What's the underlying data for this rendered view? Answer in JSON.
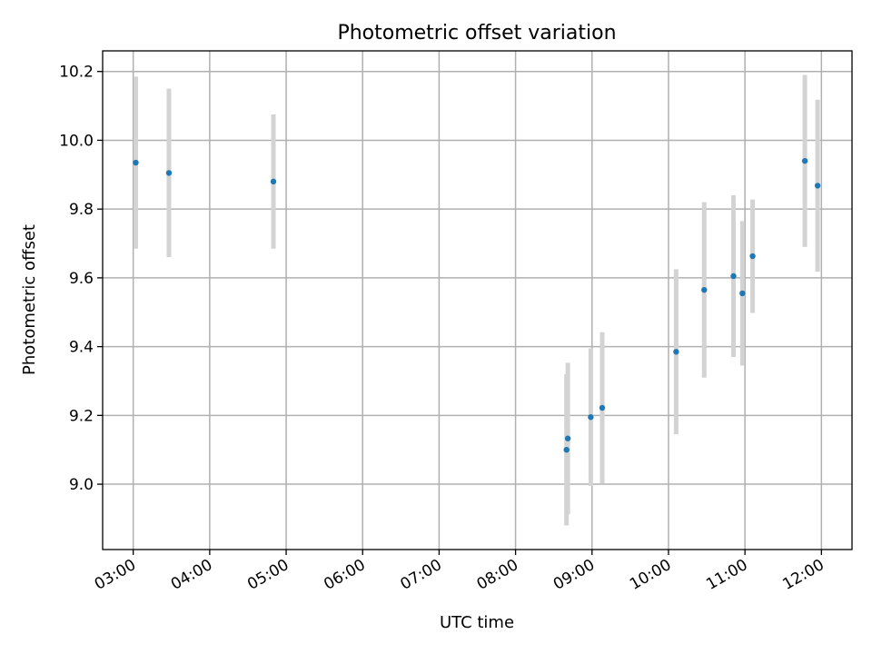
{
  "chart_data": {
    "type": "scatter",
    "title": "Photometric offset variation",
    "xlabel": "UTC time",
    "ylabel": "Photometric offset",
    "xlim": [
      "02:36",
      "12:24"
    ],
    "ylim": [
      8.81,
      10.26
    ],
    "grid": true,
    "x_ticks": [
      "03:00",
      "04:00",
      "05:00",
      "06:00",
      "07:00",
      "08:00",
      "09:00",
      "10:00",
      "11:00",
      "12:00"
    ],
    "y_ticks": [
      9.0,
      9.2,
      9.4,
      9.6,
      9.8,
      10.0,
      10.2
    ],
    "y_tick_labels": [
      "9.0",
      "9.2",
      "9.4",
      "9.6",
      "9.8",
      "10.0",
      "10.2"
    ],
    "points": [
      {
        "time": "03:02",
        "y": 9.935,
        "err": 0.25
      },
      {
        "time": "03:28",
        "y": 9.905,
        "err": 0.245
      },
      {
        "time": "04:50",
        "y": 9.88,
        "err": 0.195
      },
      {
        "time": "08:40",
        "y": 9.1,
        "err": 0.22
      },
      {
        "time": "08:41",
        "y": 9.133,
        "err": 0.22
      },
      {
        "time": "08:59",
        "y": 9.195,
        "err": 0.2
      },
      {
        "time": "09:08",
        "y": 9.222,
        "err": 0.22
      },
      {
        "time": "10:06",
        "y": 9.385,
        "err": 0.24
      },
      {
        "time": "10:28",
        "y": 9.565,
        "err": 0.255
      },
      {
        "time": "10:51",
        "y": 9.605,
        "err": 0.235
      },
      {
        "time": "10:58",
        "y": 9.555,
        "err": 0.21
      },
      {
        "time": "11:06",
        "y": 9.663,
        "err": 0.165
      },
      {
        "time": "11:47",
        "y": 9.94,
        "err": 0.25
      },
      {
        "time": "11:57",
        "y": 9.868,
        "err": 0.25
      }
    ],
    "marker_color": "#1f77b4",
    "errorbar_color": "#d3d3d3"
  }
}
